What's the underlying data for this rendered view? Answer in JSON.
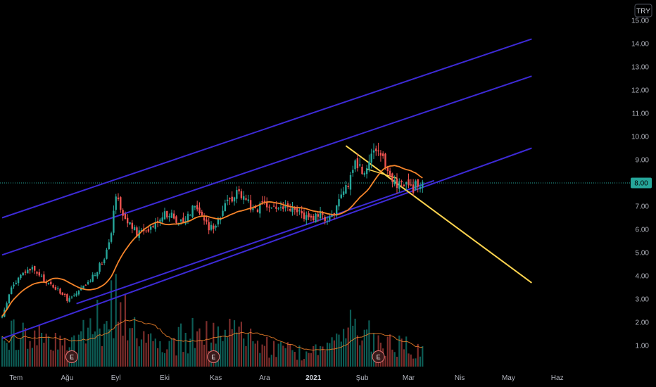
{
  "chart_data": {
    "type": "candlestick",
    "currency_label": "TRY",
    "current_price_label": "8.00",
    "current_price": 8.0,
    "ylim": [
      0.2,
      15.2
    ],
    "y_ticks": [
      "1.00",
      "2.00",
      "3.00",
      "4.00",
      "5.00",
      "6.00",
      "7.00",
      "8.00",
      "9.00",
      "10.00",
      "11.00",
      "12.00",
      "13.00",
      "14.00",
      "15.00"
    ],
    "x_months": [
      {
        "label": "Tem",
        "bar": 6
      },
      {
        "label": "Ağu",
        "bar": 28
      },
      {
        "label": "Eyl",
        "bar": 49
      },
      {
        "label": "Eki",
        "bar": 70
      },
      {
        "label": "Kas",
        "bar": 92
      },
      {
        "label": "Ara",
        "bar": 113
      },
      {
        "label": "2021",
        "bar": 134,
        "bold": true
      },
      {
        "label": "Şub",
        "bar": 155
      },
      {
        "label": "Mar",
        "bar": 175
      },
      {
        "label": "Nis",
        "bar": 197
      },
      {
        "label": "May",
        "bar": 218
      },
      {
        "label": "Haz",
        "bar": 239
      }
    ],
    "close_anchors": [
      [
        0,
        2.2
      ],
      [
        4,
        3.5
      ],
      [
        9,
        4.1
      ],
      [
        13,
        4.3
      ],
      [
        18,
        3.8
      ],
      [
        24,
        3.4
      ],
      [
        28,
        3.0
      ],
      [
        32,
        3.2
      ],
      [
        36,
        3.6
      ],
      [
        40,
        4.1
      ],
      [
        44,
        4.8
      ],
      [
        47,
        6.0
      ],
      [
        49,
        7.6
      ],
      [
        51,
        6.9
      ],
      [
        54,
        6.3
      ],
      [
        58,
        5.8
      ],
      [
        62,
        6.0
      ],
      [
        66,
        6.3
      ],
      [
        70,
        6.7
      ],
      [
        74,
        6.5
      ],
      [
        78,
        6.3
      ],
      [
        80,
        6.6
      ],
      [
        83,
        7.2
      ],
      [
        86,
        6.6
      ],
      [
        89,
        6.0
      ],
      [
        92,
        6.3
      ],
      [
        95,
        6.8
      ],
      [
        98,
        7.3
      ],
      [
        101,
        7.6
      ],
      [
        104,
        7.5
      ],
      [
        107,
        7.0
      ],
      [
        110,
        6.9
      ],
      [
        113,
        7.0
      ],
      [
        116,
        7.0
      ],
      [
        119,
        6.9
      ],
      [
        122,
        6.9
      ],
      [
        125,
        6.8
      ],
      [
        128,
        6.7
      ],
      [
        131,
        6.6
      ],
      [
        134,
        6.5
      ],
      [
        137,
        6.6
      ],
      [
        140,
        6.5
      ],
      [
        143,
        6.7
      ],
      [
        146,
        7.3
      ],
      [
        149,
        8.0
      ],
      [
        152,
        9.0
      ],
      [
        155,
        8.4
      ],
      [
        158,
        9.0
      ],
      [
        161,
        9.2
      ],
      [
        164,
        8.9
      ],
      [
        167,
        8.4
      ],
      [
        170,
        7.9
      ],
      [
        173,
        8.1
      ],
      [
        176,
        7.7
      ],
      [
        179,
        8.0
      ],
      [
        181,
        8.0
      ]
    ],
    "last_bar": 181,
    "ma_period": 20,
    "volume_anchors": [
      [
        0,
        2.0
      ],
      [
        12,
        2.6
      ],
      [
        24,
        1.6
      ],
      [
        34,
        2.2
      ],
      [
        44,
        3.6
      ],
      [
        49,
        5.0
      ],
      [
        54,
        3.0
      ],
      [
        60,
        2.0
      ],
      [
        70,
        1.6
      ],
      [
        80,
        2.2
      ],
      [
        86,
        2.6
      ],
      [
        92,
        2.8
      ],
      [
        100,
        2.4
      ],
      [
        110,
        1.6
      ],
      [
        120,
        1.2
      ],
      [
        130,
        1.0
      ],
      [
        140,
        1.2
      ],
      [
        146,
        2.4
      ],
      [
        152,
        3.0
      ],
      [
        158,
        2.2
      ],
      [
        166,
        1.8
      ],
      [
        176,
        1.4
      ],
      [
        181,
        1.0
      ]
    ],
    "earnings_markers": [
      {
        "label": "E",
        "bar": 30
      },
      {
        "label": "E",
        "bar": 91
      },
      {
        "label": "E",
        "bar": 162
      }
    ],
    "channel_lines": [
      {
        "name": "channel-top-line",
        "start": [
          0,
          6.5
        ],
        "end": [
          228,
          14.2
        ]
      },
      {
        "name": "channel-middle-line",
        "start": [
          0,
          4.9
        ],
        "end": [
          228,
          12.6
        ]
      },
      {
        "name": "channel-inner-line",
        "start": [
          0,
          1.3
        ],
        "end": [
          228,
          9.5
        ]
      },
      {
        "name": "channel-bottom-line",
        "start": [
          32,
          2.8
        ],
        "end": [
          186,
          8.1
        ]
      }
    ],
    "trend_line": {
      "start": [
        148,
        9.6
      ],
      "end": [
        228,
        3.7
      ]
    },
    "wedge_line": {
      "start": [
        157,
        8.6
      ],
      "end": [
        170,
        8.2
      ]
    },
    "colors": {
      "up": "#26a69a",
      "down": "#ef5350",
      "vol_up": "#0d5c55",
      "vol_down": "#7c2d2b",
      "ma": "#f5842a",
      "vol_ma": "#f5842a",
      "channel": "#3d2ad6",
      "trend": "#ffd54f",
      "price_tag": "#26a69a",
      "last_line": "#26a69a",
      "background": "#000000",
      "axis_text": "#b2b5be"
    }
  }
}
